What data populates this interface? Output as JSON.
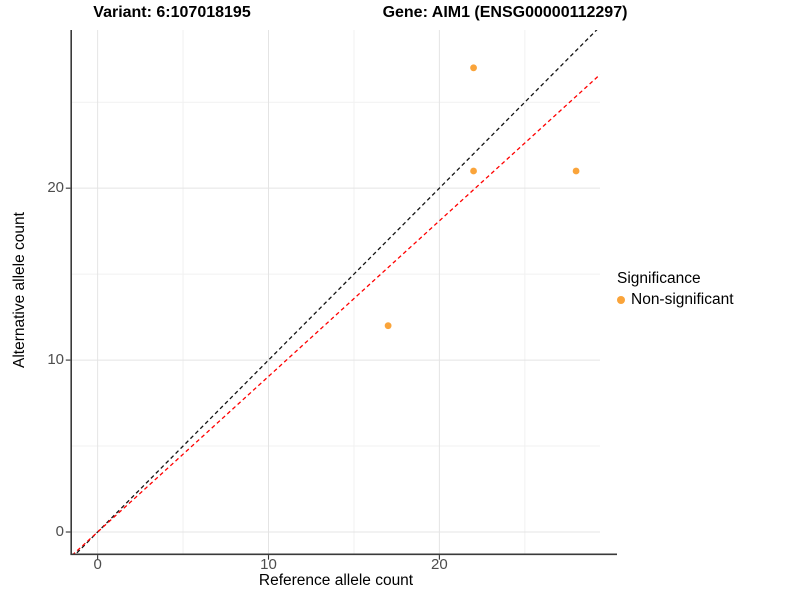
{
  "chart_data": {
    "type": "scatter",
    "titles": [
      "Variant: 6:107018195",
      "Gene: AIM1 (ENSG00000112297)"
    ],
    "xlabel": "Reference allele count",
    "ylabel": "Alternative allele count",
    "xlim": [
      -1.5,
      29.4
    ],
    "ylim": [
      -1.25,
      29.2
    ],
    "x_ticks": [
      0,
      10,
      20
    ],
    "y_ticks": [
      0,
      10,
      20
    ],
    "x_minor_ticks": [
      5,
      15,
      25
    ],
    "y_minor_ticks": [
      5,
      15,
      25
    ],
    "grid": "major+minor",
    "legend_position": "right",
    "points": [
      {
        "x": 17,
        "y": 12,
        "series": "Non-significant"
      },
      {
        "x": 22,
        "y": 21,
        "series": "Non-significant"
      },
      {
        "x": 22,
        "y": 27,
        "series": "Non-significant"
      },
      {
        "x": 28,
        "y": 21,
        "series": "Non-significant"
      }
    ],
    "point_color": "#FAA43A",
    "reference_lines": [
      {
        "name": "identity",
        "slope": 1,
        "intercept": 0,
        "color": "#141414",
        "style": "dashed"
      },
      {
        "name": "expected-ratio",
        "slope": 0.905,
        "intercept": 0,
        "color": "#FF0000",
        "style": "dashed"
      }
    ],
    "legend": {
      "title": "Significance",
      "items": [
        {
          "label": "Non-significant",
          "color": "#FAA43A"
        }
      ]
    }
  }
}
